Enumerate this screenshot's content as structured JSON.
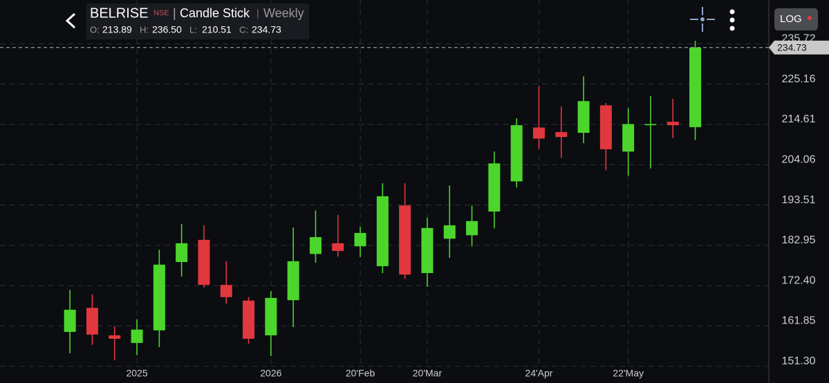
{
  "header": {
    "symbol": "BELRISE",
    "exchange": "NSE",
    "separator": "|",
    "chart_style": "Candle Stick",
    "interval": "Weekly",
    "ohlc": [
      {
        "label": "O:",
        "value": "213.89"
      },
      {
        "label": "H:",
        "value": "236.50"
      },
      {
        "label": "L:",
        "value": "210.51"
      },
      {
        "label": "C:",
        "value": "234.73"
      }
    ],
    "scale_button": "LOG"
  },
  "chart_data": {
    "type": "candlestick",
    "log_scale": false,
    "grid": true,
    "categories": [
      null,
      null,
      null,
      "2025",
      null,
      null,
      null,
      null,
      null,
      "2026",
      null,
      null,
      null,
      "20'Feb",
      null,
      null,
      "20'Mar",
      null,
      null,
      null,
      null,
      "24'Apr",
      null,
      null,
      null,
      "22'May",
      null,
      null,
      null
    ],
    "open": [
      160.3,
      166.6,
      159.4,
      157.4,
      160.7,
      178.6,
      184.4,
      172.6,
      168.5,
      159.4,
      168.6,
      180.7,
      183.5,
      182.7,
      177.5,
      193.4,
      175.7,
      184.7,
      185.6,
      191.8,
      199.7,
      213.8,
      212.6,
      212.4,
      219.6,
      207.5,
      214.4,
      215.3,
      213.89
    ],
    "high": [
      171.3,
      170.1,
      161.8,
      163.6,
      181.8,
      188.5,
      188.2,
      178.8,
      169.4,
      171.0,
      187.6,
      192.1,
      190.9,
      187.8,
      199.2,
      199.2,
      190.2,
      198.6,
      193.4,
      207.5,
      216.2,
      224.7,
      219.3,
      227.2,
      220.2,
      218.9,
      222.0,
      221.3,
      236.5
    ],
    "low": [
      154.7,
      156.9,
      152.9,
      154.2,
      156.3,
      174.8,
      171.9,
      167.7,
      157.2,
      154.0,
      161.6,
      178.4,
      180.0,
      179.9,
      175.7,
      174.2,
      172.1,
      179.7,
      182.7,
      187.4,
      198.1,
      208.2,
      205.9,
      209.7,
      202.6,
      201.2,
      203.1,
      211.0,
      210.51
    ],
    "close": [
      166.1,
      159.6,
      158.5,
      160.9,
      177.9,
      183.5,
      172.6,
      169.4,
      158.5,
      169.2,
      178.8,
      185.1,
      181.5,
      186.2,
      195.8,
      175.3,
      187.5,
      188.2,
      189.3,
      204.4,
      214.4,
      210.9,
      211.3,
      220.7,
      208.1,
      214.7,
      214.7,
      214.4,
      234.73
    ],
    "up_color": "#4cd62b",
    "down_color": "#e0383e",
    "ylim": [
      150,
      245
    ],
    "yticks": [
      {
        "value": 151.3,
        "label": "151.30"
      },
      161.85,
      {
        "value": 172.4,
        "label": "172.40"
      },
      182.95,
      193.51,
      204.06,
      214.61,
      225.16,
      235.72
    ]
  }
}
